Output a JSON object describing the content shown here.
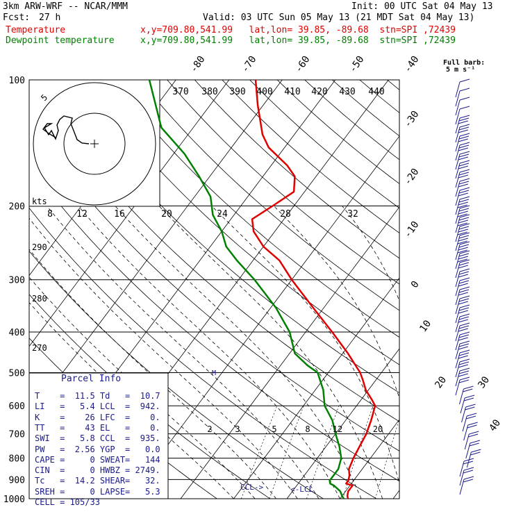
{
  "header": {
    "model": "3km ARW-WRF -- NCAR/MMM",
    "init": "Init: 00 UTC Sat 04 May 13",
    "fcst_label": "Fcst:",
    "fcst_value": "27 h",
    "valid": "Valid: 03 UTC Sun 05 May 13 (21 MDT Sat 04 May 13)",
    "temp_label": "Temperature",
    "temp_info": "x,y=709.80,541.99   lat,lon= 39.85, -89.68  stn=SPI ,72439",
    "dew_label": "Dewpoint temperature",
    "dew_info": "x,y=709.80,541.99   lat,lon= 39.85, -89.68  stn=SPI ,72439",
    "barb_legend_1": "Full barb:",
    "barb_legend_2": "5 m s⁻¹"
  },
  "colors": {
    "temperature": "#e00000",
    "dewpoint": "#008000",
    "barbs": "#1a1a8a",
    "grid": "#000000"
  },
  "chart_data": {
    "type": "line",
    "title": "",
    "xlabel": "",
    "ylabel": "",
    "pressure_ticks": [
      100,
      200,
      300,
      400,
      500,
      600,
      700,
      800,
      900,
      1000
    ],
    "isotherm_labels": [
      "-80",
      "-70",
      "-60",
      "-50",
      "-40",
      "-30",
      "-20",
      "-10",
      "0",
      "10",
      "20",
      "30",
      "40"
    ],
    "theta_labels_top": [
      "370",
      "380",
      "390",
      "400",
      "410",
      "420",
      "430",
      "440"
    ],
    "theta_labels_left": [
      "290",
      "280",
      "270"
    ],
    "kts_label": "kts",
    "mixing_ratio_labels": [
      "2",
      "3",
      "5",
      "8",
      "12",
      "20"
    ],
    "hodograph_ring_labels": [
      "8",
      "12",
      "16",
      "20",
      "24",
      "28",
      "32"
    ],
    "hodograph_rim_label": "5",
    "ccl_marker": "CCL->",
    "lcl_marker": "<-LCL",
    "series": [
      {
        "name": "Temperature",
        "color": "#e00000",
        "points": [
          [
            1000,
            11.5
          ],
          [
            985,
            11
          ],
          [
            960,
            10.5
          ],
          [
            930,
            10.5
          ],
          [
            920,
            9
          ],
          [
            905,
            9
          ],
          [
            880,
            8.5
          ],
          [
            850,
            7.5
          ],
          [
            800,
            6.8
          ],
          [
            750,
            6.3
          ],
          [
            700,
            5.8
          ],
          [
            650,
            4.8
          ],
          [
            600,
            3.5
          ],
          [
            580,
            2
          ],
          [
            550,
            -0.5
          ],
          [
            520,
            -2.5
          ],
          [
            500,
            -4
          ],
          [
            450,
            -9
          ],
          [
            400,
            -15
          ],
          [
            350,
            -22
          ],
          [
            300,
            -30
          ],
          [
            270,
            -35
          ],
          [
            250,
            -40
          ],
          [
            230,
            -44
          ],
          [
            215,
            -46
          ],
          [
            200,
            -44
          ],
          [
            185,
            -42
          ],
          [
            170,
            -44
          ],
          [
            160,
            -47
          ],
          [
            145,
            -53
          ],
          [
            135,
            -56
          ],
          [
            115,
            -61
          ],
          [
            100,
            -65
          ]
        ]
      },
      {
        "name": "Dewpoint temperature",
        "color": "#008000",
        "points": [
          [
            1000,
            10.7
          ],
          [
            985,
            10
          ],
          [
            960,
            9
          ],
          [
            930,
            7
          ],
          [
            920,
            6
          ],
          [
            905,
            5.5
          ],
          [
            880,
            5.5
          ],
          [
            850,
            5.5
          ],
          [
            800,
            4.5
          ],
          [
            750,
            2.5
          ],
          [
            700,
            0
          ],
          [
            650,
            -2.5
          ],
          [
            600,
            -6
          ],
          [
            550,
            -8.5
          ],
          [
            500,
            -12
          ],
          [
            480,
            -15
          ],
          [
            450,
            -19
          ],
          [
            400,
            -23
          ],
          [
            350,
            -29
          ],
          [
            300,
            -37
          ],
          [
            270,
            -43
          ],
          [
            250,
            -47
          ],
          [
            230,
            -50
          ],
          [
            210,
            -54
          ],
          [
            190,
            -57
          ],
          [
            170,
            -62
          ],
          [
            150,
            -68
          ],
          [
            130,
            -76
          ],
          [
            100,
            -85
          ]
        ]
      }
    ]
  },
  "parcel": {
    "title": "Parcel Info",
    "rows": [
      {
        "a_label": "T",
        "a_value": "11.5",
        "b_label": "Td",
        "b_value": "10.7"
      },
      {
        "a_label": "LI",
        "a_value": "5.4",
        "b_label": "LCL",
        "b_value": "942."
      },
      {
        "a_label": "K",
        "a_value": "26",
        "b_label": "LFC",
        "b_value": "0."
      },
      {
        "a_label": "TT",
        "a_value": "43",
        "b_label": "EL",
        "b_value": "0."
      },
      {
        "a_label": "SWI",
        "a_value": "5.8",
        "b_label": "CCL",
        "b_value": "935."
      },
      {
        "a_label": "PW",
        "a_value": "2.56",
        "b_label": "YGP",
        "b_value": "0.0"
      },
      {
        "a_label": "CAPE",
        "a_value": "0",
        "b_label": "SWEAT",
        "b_value": "144"
      },
      {
        "a_label": "CIN",
        "a_value": "0",
        "b_label": "HWBZ",
        "b_value": "2749."
      },
      {
        "a_label": "Tc",
        "a_value": "14.2",
        "b_label": "SHEAR",
        "b_value": "32."
      },
      {
        "a_label": "SREH",
        "a_value": "0",
        "b_label": "LAPSE",
        "b_value": "5.3"
      }
    ],
    "cell_label": "CELL",
    "cell_value": "105/33"
  }
}
